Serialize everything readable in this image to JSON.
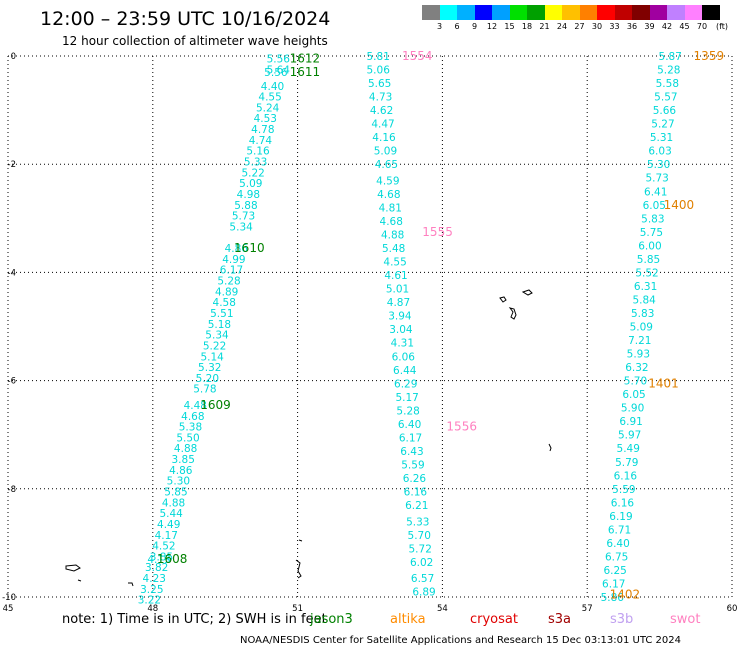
{
  "header": {
    "title": "12:00 – 23:59 UTC 10/16/2024",
    "subtitle": "12 hour collection of altimeter wave heights"
  },
  "colorbar": {
    "colors": [
      "#808080",
      "#00ffff",
      "#00b0ff",
      "#0000ff",
      "#00a0ff",
      "#00e000",
      "#00a000",
      "#ffff00",
      "#ffc000",
      "#ff8000",
      "#ff0000",
      "#c00000",
      "#800000",
      "#a000a0",
      "#c080ff",
      "#ff80ff",
      "#000000"
    ],
    "labels": [
      "3",
      "6",
      "9",
      "12",
      "15",
      "18",
      "21",
      "24",
      "27",
      "30",
      "33",
      "36",
      "39",
      "42",
      "45",
      "70"
    ],
    "unit": "(ft)"
  },
  "axes": {
    "x_ticks": [
      "45",
      "48",
      "51",
      "54",
      "57",
      "60"
    ],
    "y_ticks": [
      "0",
      "-2",
      "-4",
      "-6",
      "-8",
      "-10"
    ]
  },
  "tracks": [
    {
      "id": "t1",
      "color": "#00d8d8",
      "labels": [
        {
          "lon": 50.6,
          "lat": -0.05,
          "v": "5.56"
        },
        {
          "lon": 50.6,
          "lat": -0.25,
          "v": "5.64"
        },
        {
          "lon": 50.55,
          "lat": -0.3,
          "v": "5.56"
        },
        {
          "lon": 50.48,
          "lat": -0.55,
          "v": "4.40"
        },
        {
          "lon": 50.43,
          "lat": -0.75,
          "v": "4.55"
        },
        {
          "lon": 50.38,
          "lat": -0.95,
          "v": "5.24"
        },
        {
          "lon": 50.33,
          "lat": -1.15,
          "v": "4.53"
        },
        {
          "lon": 50.28,
          "lat": -1.35,
          "v": "4.78"
        },
        {
          "lon": 50.23,
          "lat": -1.55,
          "v": "4.74"
        },
        {
          "lon": 50.18,
          "lat": -1.75,
          "v": "5.16"
        },
        {
          "lon": 50.13,
          "lat": -1.95,
          "v": "5.33"
        },
        {
          "lon": 50.08,
          "lat": -2.15,
          "v": "5.22"
        },
        {
          "lon": 50.03,
          "lat": -2.35,
          "v": "5.09"
        },
        {
          "lon": 49.98,
          "lat": -2.55,
          "v": "4.98"
        },
        {
          "lon": 49.93,
          "lat": -2.75,
          "v": "5.88"
        },
        {
          "lon": 49.88,
          "lat": -2.95,
          "v": "5.73"
        },
        {
          "lon": 49.83,
          "lat": -3.15,
          "v": "5.34"
        },
        {
          "lon": 49.73,
          "lat": -3.55,
          "v": "4.86"
        },
        {
          "lon": 49.68,
          "lat": -3.75,
          "v": "4.99"
        },
        {
          "lon": 49.63,
          "lat": -3.95,
          "v": "6.17"
        },
        {
          "lon": 49.58,
          "lat": -4.15,
          "v": "5.28"
        },
        {
          "lon": 49.53,
          "lat": -4.35,
          "v": "4.89"
        },
        {
          "lon": 49.48,
          "lat": -4.55,
          "v": "4.58"
        },
        {
          "lon": 49.43,
          "lat": -4.75,
          "v": "5.51"
        },
        {
          "lon": 49.38,
          "lat": -4.95,
          "v": "5.18"
        },
        {
          "lon": 49.33,
          "lat": -5.15,
          "v": "5.34"
        },
        {
          "lon": 49.28,
          "lat": -5.35,
          "v": "5.22"
        },
        {
          "lon": 49.23,
          "lat": -5.55,
          "v": "5.14"
        },
        {
          "lon": 49.18,
          "lat": -5.75,
          "v": "5.32"
        },
        {
          "lon": 49.13,
          "lat": -5.95,
          "v": "5.20"
        },
        {
          "lon": 49.08,
          "lat": -6.15,
          "v": "5.78"
        },
        {
          "lon": 48.88,
          "lat": -6.45,
          "v": "4.48"
        },
        {
          "lon": 48.83,
          "lat": -6.65,
          "v": "4.68"
        },
        {
          "lon": 48.78,
          "lat": -6.85,
          "v": "5.38"
        },
        {
          "lon": 48.73,
          "lat": -7.05,
          "v": "5.50"
        },
        {
          "lon": 48.68,
          "lat": -7.25,
          "v": "4.88"
        },
        {
          "lon": 48.63,
          "lat": -7.45,
          "v": "3.85"
        },
        {
          "lon": 48.58,
          "lat": -7.65,
          "v": "4.86"
        },
        {
          "lon": 48.53,
          "lat": -7.85,
          "v": "5.30"
        },
        {
          "lon": 48.48,
          "lat": -8.05,
          "v": "5.85"
        },
        {
          "lon": 48.43,
          "lat": -8.25,
          "v": "4.88"
        },
        {
          "lon": 48.38,
          "lat": -8.45,
          "v": "5.44"
        },
        {
          "lon": 48.33,
          "lat": -8.65,
          "v": "4.49"
        },
        {
          "lon": 48.28,
          "lat": -8.85,
          "v": "4.17"
        },
        {
          "lon": 48.23,
          "lat": -9.05,
          "v": "4.52"
        },
        {
          "lon": 48.18,
          "lat": -9.25,
          "v": "3.85"
        },
        {
          "lon": 48.13,
          "lat": -9.3,
          "v": "4.13"
        },
        {
          "lon": 48.08,
          "lat": -9.45,
          "v": "3.82"
        },
        {
          "lon": 48.03,
          "lat": -9.65,
          "v": "4.23"
        },
        {
          "lon": 47.98,
          "lat": -9.85,
          "v": "3.25"
        },
        {
          "lon": 47.93,
          "lat": -10.05,
          "v": "3.22"
        }
      ],
      "times": [
        {
          "lon": 51.15,
          "lat": -0.05,
          "t": "1612"
        },
        {
          "lon": 51.15,
          "lat": -0.3,
          "t": "1611"
        },
        {
          "lon": 50.0,
          "lat": -3.55,
          "t": "1610"
        },
        {
          "lon": 49.3,
          "lat": -6.45,
          "t": "1609"
        },
        {
          "lon": 48.4,
          "lat": -9.3,
          "t": "1608"
        }
      ],
      "time_color": "#008000"
    },
    {
      "id": "t2",
      "color": "#00d8d8",
      "labels": [
        {
          "lon": 52.67,
          "lat": 0.0,
          "v": "5.81"
        },
        {
          "lon": 52.67,
          "lat": -0.25,
          "v": "5.06"
        },
        {
          "lon": 52.7,
          "lat": -0.5,
          "v": "5.65"
        },
        {
          "lon": 52.72,
          "lat": -0.75,
          "v": "4.73"
        },
        {
          "lon": 52.74,
          "lat": -1.0,
          "v": "4.62"
        },
        {
          "lon": 52.77,
          "lat": -1.25,
          "v": "4.47"
        },
        {
          "lon": 52.79,
          "lat": -1.5,
          "v": "4.16"
        },
        {
          "lon": 52.82,
          "lat": -1.75,
          "v": "5.09"
        },
        {
          "lon": 52.84,
          "lat": -2.0,
          "v": "4.65"
        },
        {
          "lon": 52.87,
          "lat": -2.3,
          "v": "4.59"
        },
        {
          "lon": 52.89,
          "lat": -2.55,
          "v": "4.68"
        },
        {
          "lon": 52.92,
          "lat": -2.8,
          "v": "4.81"
        },
        {
          "lon": 52.94,
          "lat": -3.05,
          "v": "4.68"
        },
        {
          "lon": 52.97,
          "lat": -3.3,
          "v": "4.88"
        },
        {
          "lon": 52.99,
          "lat": -3.55,
          "v": "5.48"
        },
        {
          "lon": 53.02,
          "lat": -3.8,
          "v": "4.55"
        },
        {
          "lon": 53.04,
          "lat": -4.05,
          "v": "4.61"
        },
        {
          "lon": 53.07,
          "lat": -4.3,
          "v": "5.01"
        },
        {
          "lon": 53.09,
          "lat": -4.55,
          "v": "4.87"
        },
        {
          "lon": 53.12,
          "lat": -4.8,
          "v": "3.94"
        },
        {
          "lon": 53.14,
          "lat": -5.05,
          "v": "3.04"
        },
        {
          "lon": 53.17,
          "lat": -5.3,
          "v": "4.31"
        },
        {
          "lon": 53.19,
          "lat": -5.55,
          "v": "6.06"
        },
        {
          "lon": 53.22,
          "lat": -5.8,
          "v": "6.44"
        },
        {
          "lon": 53.24,
          "lat": -6.05,
          "v": "6.29"
        },
        {
          "lon": 53.27,
          "lat": -6.3,
          "v": "5.17"
        },
        {
          "lon": 53.29,
          "lat": -6.55,
          "v": "5.28"
        },
        {
          "lon": 53.32,
          "lat": -6.8,
          "v": "6.40"
        },
        {
          "lon": 53.34,
          "lat": -7.05,
          "v": "6.17"
        },
        {
          "lon": 53.37,
          "lat": -7.3,
          "v": "6.43"
        },
        {
          "lon": 53.39,
          "lat": -7.55,
          "v": "5.59"
        },
        {
          "lon": 53.42,
          "lat": -7.8,
          "v": "6.26"
        },
        {
          "lon": 53.44,
          "lat": -8.05,
          "v": "6.16"
        },
        {
          "lon": 53.47,
          "lat": -8.3,
          "v": "6.21"
        },
        {
          "lon": 53.49,
          "lat": -8.6,
          "v": "5.33"
        },
        {
          "lon": 53.52,
          "lat": -8.85,
          "v": "5.70"
        },
        {
          "lon": 53.54,
          "lat": -9.1,
          "v": "5.72"
        },
        {
          "lon": 53.57,
          "lat": -9.35,
          "v": "6.02"
        },
        {
          "lon": 53.59,
          "lat": -9.65,
          "v": "6.57"
        },
        {
          "lon": 53.62,
          "lat": -9.9,
          "v": "6.89"
        }
      ],
      "times": [
        {
          "lon": 53.48,
          "lat": 0.0,
          "t": "1554"
        },
        {
          "lon": 53.9,
          "lat": -3.25,
          "t": "1555"
        },
        {
          "lon": 54.4,
          "lat": -6.85,
          "t": "1556"
        }
      ],
      "time_color": "#ff80c0"
    },
    {
      "id": "t3",
      "color": "#00d8d8",
      "labels": [
        {
          "lon": 58.72,
          "lat": 0.0,
          "v": "5.87"
        },
        {
          "lon": 58.69,
          "lat": -0.25,
          "v": "5.28"
        },
        {
          "lon": 58.66,
          "lat": -0.5,
          "v": "5.58"
        },
        {
          "lon": 58.63,
          "lat": -0.75,
          "v": "5.57"
        },
        {
          "lon": 58.6,
          "lat": -1.0,
          "v": "5.66"
        },
        {
          "lon": 58.57,
          "lat": -1.25,
          "v": "5.27"
        },
        {
          "lon": 58.54,
          "lat": -1.5,
          "v": "5.31"
        },
        {
          "lon": 58.51,
          "lat": -1.75,
          "v": "6.03"
        },
        {
          "lon": 58.48,
          "lat": -2.0,
          "v": "5.30"
        },
        {
          "lon": 58.45,
          "lat": -2.25,
          "v": "5.73"
        },
        {
          "lon": 58.42,
          "lat": -2.5,
          "v": "6.41"
        },
        {
          "lon": 58.39,
          "lat": -2.75,
          "v": "6.05"
        },
        {
          "lon": 58.36,
          "lat": -3.0,
          "v": "5.83"
        },
        {
          "lon": 58.33,
          "lat": -3.25,
          "v": "5.75"
        },
        {
          "lon": 58.3,
          "lat": -3.5,
          "v": "6.00"
        },
        {
          "lon": 58.27,
          "lat": -3.75,
          "v": "5.85"
        },
        {
          "lon": 58.24,
          "lat": -4.0,
          "v": "5.52"
        },
        {
          "lon": 58.21,
          "lat": -4.25,
          "v": "6.31"
        },
        {
          "lon": 58.18,
          "lat": -4.5,
          "v": "5.84"
        },
        {
          "lon": 58.15,
          "lat": -4.75,
          "v": "5.83"
        },
        {
          "lon": 58.12,
          "lat": -5.0,
          "v": "5.09"
        },
        {
          "lon": 58.09,
          "lat": -5.25,
          "v": "7.21"
        },
        {
          "lon": 58.06,
          "lat": -5.5,
          "v": "5.93"
        },
        {
          "lon": 58.03,
          "lat": -5.75,
          "v": "6.32"
        },
        {
          "lon": 58.0,
          "lat": -6.0,
          "v": "5.70"
        },
        {
          "lon": 57.97,
          "lat": -6.25,
          "v": "6.05"
        },
        {
          "lon": 57.94,
          "lat": -6.5,
          "v": "5.90"
        },
        {
          "lon": 57.91,
          "lat": -6.75,
          "v": "6.91"
        },
        {
          "lon": 57.88,
          "lat": -7.0,
          "v": "5.97"
        },
        {
          "lon": 57.85,
          "lat": -7.25,
          "v": "5.49"
        },
        {
          "lon": 57.82,
          "lat": -7.5,
          "v": "5.79"
        },
        {
          "lon": 57.79,
          "lat": -7.75,
          "v": "6.16"
        },
        {
          "lon": 57.76,
          "lat": -8.0,
          "v": "5.59"
        },
        {
          "lon": 57.73,
          "lat": -8.25,
          "v": "6.16"
        },
        {
          "lon": 57.7,
          "lat": -8.5,
          "v": "6.19"
        },
        {
          "lon": 57.67,
          "lat": -8.75,
          "v": "6.71"
        },
        {
          "lon": 57.64,
          "lat": -9.0,
          "v": "6.40"
        },
        {
          "lon": 57.61,
          "lat": -9.25,
          "v": "6.75"
        },
        {
          "lon": 57.58,
          "lat": -9.5,
          "v": "6.25"
        },
        {
          "lon": 57.55,
          "lat": -9.75,
          "v": "6.17"
        },
        {
          "lon": 57.52,
          "lat": -10.0,
          "v": "5.86"
        }
      ],
      "times": [
        {
          "lon": 59.52,
          "lat": 0.0,
          "t": "1359"
        },
        {
          "lon": 58.9,
          "lat": -2.75,
          "t": "1400"
        },
        {
          "lon": 58.58,
          "lat": -6.05,
          "t": "1401"
        },
        {
          "lon": 57.78,
          "lat": -9.95,
          "t": "1402"
        }
      ],
      "time_color": "#e08000"
    }
  ],
  "note": "note: 1) Time is in UTC; 2) SWH is in feet",
  "legend": [
    {
      "name": "jason3",
      "color": "#008000"
    },
    {
      "name": "altika",
      "color": "#ff8c00"
    },
    {
      "name": "cryosat",
      "color": "#e00000"
    },
    {
      "name": "s3a",
      "color": "#a00000"
    },
    {
      "name": "s3b",
      "color": "#c0a0f0"
    },
    {
      "name": "swot",
      "color": "#ff80c0"
    }
  ],
  "footer": "NOAA/NESDIS Center for Satellite Applications and Research    15 Dec 03:13:01 UTC 2024"
}
